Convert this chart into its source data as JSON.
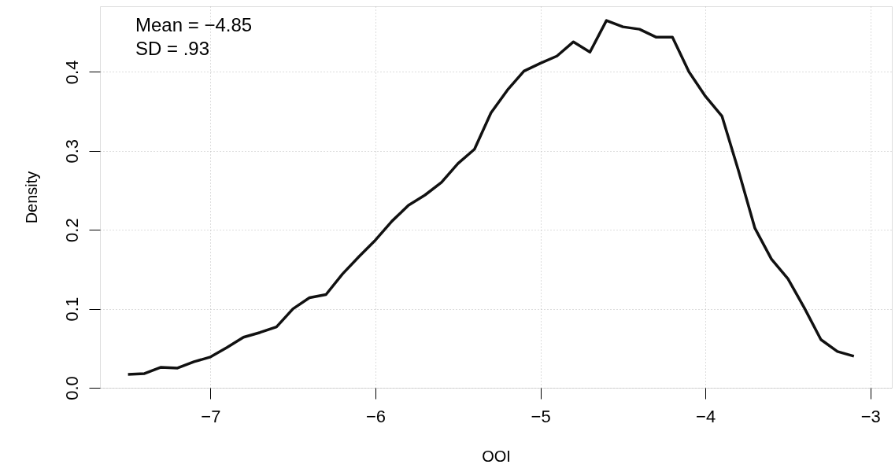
{
  "chart_data": {
    "type": "line",
    "xlabel": "OOI",
    "ylabel": "Density",
    "x": [
      -7.5,
      -7.4,
      -7.3,
      -7.2,
      -7.1,
      -7.0,
      -6.9,
      -6.8,
      -6.7,
      -6.6,
      -6.5,
      -6.4,
      -6.3,
      -6.2,
      -6.1,
      -6.0,
      -5.9,
      -5.8,
      -5.7,
      -5.6,
      -5.5,
      -5.4,
      -5.3,
      -5.2,
      -5.1,
      -5.0,
      -4.9,
      -4.8,
      -4.7,
      -4.6,
      -4.5,
      -4.4,
      -4.3,
      -4.2,
      -4.1,
      -4.0,
      -3.9,
      -3.8,
      -3.7,
      -3.6,
      -3.5,
      -3.4,
      -3.3,
      -3.2,
      -3.1
    ],
    "series": [
      {
        "color": "#111111",
        "values": [
          0.017,
          0.018,
          0.026,
          0.025,
          0.033,
          0.039,
          0.051,
          0.064,
          0.07,
          0.077,
          0.1,
          0.114,
          0.118,
          0.144,
          0.166,
          0.187,
          0.211,
          0.231,
          0.244,
          0.26,
          0.284,
          0.302,
          0.348,
          0.377,
          0.401,
          0.411,
          0.42,
          0.438,
          0.425,
          0.465,
          0.457,
          0.454,
          0.444,
          0.444,
          0.4,
          0.369,
          0.344,
          0.275,
          0.202,
          0.163,
          0.138,
          0.101,
          0.061,
          0.046,
          0.04
        ]
      }
    ],
    "xlim": [
      -7.67,
      -2.87
    ],
    "xticks": [
      -7,
      -6,
      -5,
      -4,
      -3
    ],
    "ylim": [
      0,
      0.483
    ],
    "yticks": [
      {
        "value": 0,
        "label": "0.0"
      },
      {
        "value": 0.1,
        "label": "0.1"
      },
      {
        "value": 0.2,
        "label": "0.2"
      },
      {
        "value": 0.3,
        "label": "0.3"
      },
      {
        "value": 0.4,
        "label": "0.4"
      }
    ],
    "grid": true,
    "marker": "none",
    "line_style": "solid",
    "annotations": [
      "Mean = −4.85",
      "SD = .93"
    ]
  }
}
